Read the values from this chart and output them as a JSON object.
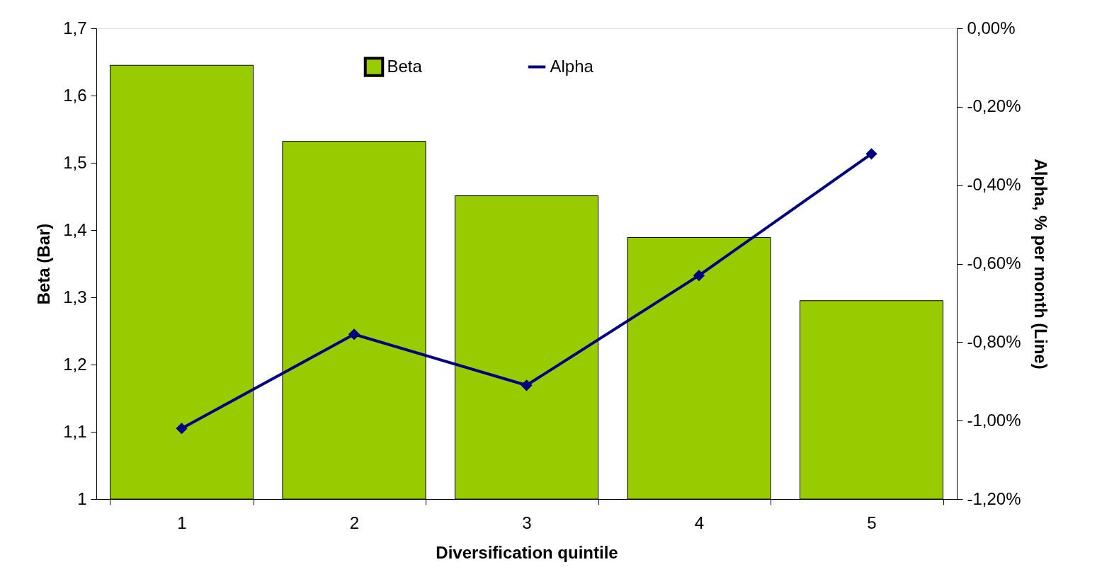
{
  "chart_data": {
    "type": "bar",
    "xlabel": "Diversification quintile",
    "ylabel": "Beta (Bar)",
    "y2label": "Alpha, % per month (Line)",
    "categories": [
      "1",
      "2",
      "3",
      "4",
      "5"
    ],
    "series": [
      {
        "name": "Beta",
        "color": "#99cc00",
        "values": [
          1.645,
          1.532,
          1.451,
          1.389,
          1.295
        ]
      },
      {
        "name": "Alpha",
        "type": "line",
        "axis": "y2",
        "color": "#000080",
        "values": [
          -1.02,
          -0.78,
          -0.91,
          -0.63,
          -0.32
        ]
      }
    ],
    "ylim": [
      1,
      1.7
    ],
    "yticks": [
      {
        "value": 1,
        "label": "1"
      },
      {
        "value": 1.1,
        "label": "1,1"
      },
      {
        "value": 1.2,
        "label": "1,2"
      },
      {
        "value": 1.3,
        "label": "1,3"
      },
      {
        "value": 1.4,
        "label": "1,4"
      },
      {
        "value": 1.5,
        "label": "1,5"
      },
      {
        "value": 1.6,
        "label": "1,6"
      },
      {
        "value": 1.7,
        "label": "1,7"
      }
    ],
    "y2lim": [
      -1.2,
      0
    ],
    "y2ticks": [
      {
        "value": -1.2,
        "label": "-1,20%"
      },
      {
        "value": -1.0,
        "label": "-1,00%"
      },
      {
        "value": -0.8,
        "label": "-0,80%"
      },
      {
        "value": -0.6,
        "label": "-0,60%"
      },
      {
        "value": -0.4,
        "label": "-0,40%"
      },
      {
        "value": -0.2,
        "label": "-0,20%"
      },
      {
        "value": 0,
        "label": "0,00%"
      }
    ],
    "legend": "top",
    "marker": "diamond",
    "line_style": "solid"
  }
}
